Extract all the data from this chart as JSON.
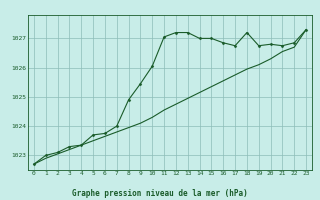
{
  "title": "Graphe pression niveau de la mer (hPa)",
  "bg_color": "#c8ede8",
  "grid_color": "#8dbdb8",
  "line_color": "#1a5c2a",
  "marker_color": "#1a5c2a",
  "text_color": "#1a5c2a",
  "xlim": [
    -0.5,
    23.5
  ],
  "ylim": [
    1022.5,
    1027.8
  ],
  "yticks": [
    1023,
    1024,
    1025,
    1026,
    1027
  ],
  "xticks": [
    0,
    1,
    2,
    3,
    4,
    5,
    6,
    7,
    8,
    9,
    10,
    11,
    12,
    13,
    14,
    15,
    16,
    17,
    18,
    19,
    20,
    21,
    22,
    23
  ],
  "series1_x": [
    0,
    1,
    2,
    3,
    4,
    5,
    6,
    7,
    8,
    9,
    10,
    11,
    12,
    13,
    14,
    15,
    16,
    17,
    18,
    19,
    20,
    21,
    22,
    23
  ],
  "series1_y": [
    1022.7,
    1023.0,
    1023.1,
    1023.3,
    1023.35,
    1023.7,
    1023.75,
    1024.0,
    1024.9,
    1025.45,
    1026.05,
    1027.05,
    1027.2,
    1027.2,
    1027.0,
    1027.0,
    1026.85,
    1026.75,
    1027.2,
    1026.75,
    1026.8,
    1026.75,
    1026.85,
    1027.3
  ],
  "series2_x": [
    0,
    1,
    2,
    3,
    4,
    5,
    6,
    7,
    8,
    9,
    10,
    11,
    12,
    13,
    14,
    15,
    16,
    17,
    18,
    19,
    20,
    21,
    22,
    23
  ],
  "series2_y": [
    1022.7,
    1022.9,
    1023.05,
    1023.2,
    1023.35,
    1023.5,
    1023.65,
    1023.8,
    1023.95,
    1024.1,
    1024.3,
    1024.55,
    1024.75,
    1024.95,
    1025.15,
    1025.35,
    1025.55,
    1025.75,
    1025.95,
    1026.1,
    1026.3,
    1026.55,
    1026.7,
    1027.3
  ]
}
